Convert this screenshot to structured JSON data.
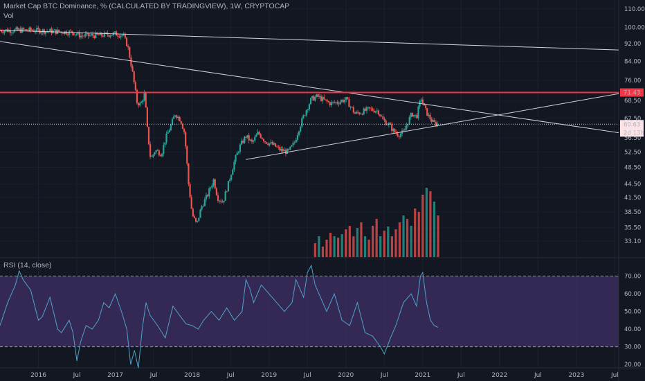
{
  "header": {
    "title": "Market Cap BTC Dominance, % (CALCULATED BY TRADINGVIEW), 1W, CRYPTOCAP",
    "volume_label": "Vol",
    "rsi_label": "RSI (14, close)"
  },
  "colors": {
    "background": "#131722",
    "up": "#26a69a",
    "down": "#ef5350",
    "resistance": "#f23645",
    "trendline": "#d1d4dc",
    "rsi_line": "#4fa3c9",
    "rsi_band": "#3b2d5e"
  },
  "chart_data": [
    {
      "type": "candlestick",
      "title": "Market Cap BTC Dominance, % (CALCULATED BY TRADINGVIEW), 1W, CRYPTOCAP",
      "y_scale": "log",
      "ylim": [
        31.5,
        112
      ],
      "y_ticks": [
        "110.00",
        "100.00",
        "92.00",
        "84.00",
        "76.00",
        "68.50",
        "62.50",
        "56.50",
        "52.50",
        "48.50",
        "44.50",
        "41.50",
        "38.50",
        "35.50",
        "33.10"
      ],
      "y_tick_values": [
        110,
        100,
        92,
        84,
        76,
        68.5,
        62.5,
        56.5,
        52.5,
        48.5,
        44.5,
        41.5,
        38.5,
        35.5,
        33.1
      ],
      "x_ticks": [
        "2016",
        "Jul",
        "2017",
        "Jul",
        "2018",
        "Jul",
        "2019",
        "Jul",
        "2020",
        "Jul",
        "2021",
        "Jul",
        "2022",
        "Jul",
        "2023",
        "Jul"
      ],
      "x_tick_dates": [
        2016.0,
        2016.5,
        2017.0,
        2017.5,
        2018.0,
        2018.5,
        2019.0,
        2019.5,
        2020.0,
        2020.5,
        2021.0,
        2021.5,
        2022.0,
        2022.5,
        2023.0,
        2023.5
      ],
      "xlim": [
        2015.5,
        2023.55
      ],
      "close_path": [
        [
          2015.5,
          98.5
        ],
        [
          2015.9,
          98.6
        ],
        [
          2016.2,
          98.0
        ],
        [
          2016.45,
          97.5
        ],
        [
          2016.55,
          95.8
        ],
        [
          2016.8,
          96.0
        ],
        [
          2017.0,
          96.8
        ],
        [
          2017.1,
          96.0
        ],
        [
          2017.16,
          91.0
        ],
        [
          2017.22,
          80.0
        ],
        [
          2017.28,
          68.0
        ],
        [
          2017.33,
          67.0
        ],
        [
          2017.38,
          71.0
        ],
        [
          2017.42,
          58.0
        ],
        [
          2017.46,
          50.5
        ],
        [
          2017.52,
          53.0
        ],
        [
          2017.6,
          52.0
        ],
        [
          2017.65,
          56.0
        ],
        [
          2017.72,
          60.0
        ],
        [
          2017.78,
          64.0
        ],
        [
          2017.85,
          62.0
        ],
        [
          2017.9,
          58.0
        ],
        [
          2017.95,
          45.0
        ],
        [
          2018.0,
          38.0
        ],
        [
          2018.06,
          36.0
        ],
        [
          2018.12,
          39.5
        ],
        [
          2018.2,
          42.0
        ],
        [
          2018.28,
          45.5
        ],
        [
          2018.33,
          41.5
        ],
        [
          2018.4,
          40.5
        ],
        [
          2018.47,
          44.5
        ],
        [
          2018.55,
          50.0
        ],
        [
          2018.62,
          54.0
        ],
        [
          2018.7,
          57.0
        ],
        [
          2018.78,
          55.0
        ],
        [
          2018.86,
          58.0
        ],
        [
          2018.95,
          55.5
        ],
        [
          2019.05,
          54.5
        ],
        [
          2019.15,
          53.0
        ],
        [
          2019.25,
          52.5
        ],
        [
          2019.33,
          55.0
        ],
        [
          2019.4,
          60.0
        ],
        [
          2019.48,
          65.0
        ],
        [
          2019.55,
          69.0
        ],
        [
          2019.63,
          70.0
        ],
        [
          2019.72,
          68.5
        ],
        [
          2019.8,
          67.5
        ],
        [
          2019.9,
          68.0
        ],
        [
          2020.0,
          69.0
        ],
        [
          2020.06,
          66.5
        ],
        [
          2020.12,
          64.0
        ],
        [
          2020.2,
          64.5
        ],
        [
          2020.3,
          65.5
        ],
        [
          2020.42,
          65.0
        ],
        [
          2020.48,
          62.0
        ],
        [
          2020.56,
          60.5
        ],
        [
          2020.62,
          58.5
        ],
        [
          2020.68,
          57.5
        ],
        [
          2020.75,
          58.0
        ],
        [
          2020.8,
          61.0
        ],
        [
          2020.86,
          64.0
        ],
        [
          2020.92,
          63.0
        ],
        [
          2020.98,
          69.5
        ],
        [
          2021.02,
          66.0
        ],
        [
          2021.08,
          63.0
        ],
        [
          2021.14,
          61.0
        ],
        [
          2021.2,
          60.63
        ]
      ],
      "last_value": "60.63",
      "countdown": "2d 13h",
      "volume": {
        "dates": [
          2019.6,
          2019.65,
          2019.7,
          2019.75,
          2019.8,
          2019.85,
          2019.9,
          2019.95,
          2020.0,
          2020.05,
          2020.1,
          2020.15,
          2020.2,
          2020.25,
          2020.3,
          2020.35,
          2020.4,
          2020.45,
          2020.5,
          2020.55,
          2020.6,
          2020.65,
          2020.7,
          2020.75,
          2020.8,
          2020.85,
          2020.9,
          2020.95,
          2021.0,
          2021.05,
          2021.1,
          2021.15,
          2021.2
        ],
        "values": [
          0.2,
          0.3,
          0.15,
          0.25,
          0.35,
          0.3,
          0.28,
          0.33,
          0.4,
          0.45,
          0.3,
          0.42,
          0.5,
          0.3,
          0.25,
          0.45,
          0.55,
          0.3,
          0.38,
          0.44,
          0.3,
          0.4,
          0.5,
          0.6,
          0.55,
          0.45,
          0.7,
          0.65,
          0.9,
          1.0,
          0.95,
          0.8,
          0.6
        ]
      },
      "annotations": {
        "resistance_level": "71.43",
        "price_levels": [
          71.43,
          60.63
        ]
      }
    },
    {
      "type": "line",
      "title": "RSI (14, close)",
      "ylim": [
        18.5,
        80
      ],
      "y_ticks": [
        "70.00",
        "60.00",
        "50.00",
        "40.00",
        "30.00",
        "20.00"
      ],
      "y_tick_values": [
        70,
        60,
        50,
        40,
        30,
        20
      ],
      "bands": [
        30,
        70
      ],
      "series": [
        {
          "x": [
            2015.5,
            2015.6,
            2015.7,
            2015.75,
            2015.8,
            2015.9,
            2016.0,
            2016.05,
            2016.15,
            2016.25,
            2016.3,
            2016.4,
            2016.45,
            2016.5,
            2016.55,
            2016.62,
            2016.7,
            2016.78,
            2016.85,
            2016.92,
            2017.0,
            2017.08,
            2017.15,
            2017.2,
            2017.25,
            2017.3,
            2017.35,
            2017.4,
            2017.45,
            2017.55,
            2017.65,
            2017.75,
            2017.85,
            2017.92,
            2018.0,
            2018.08,
            2018.15,
            2018.25,
            2018.35,
            2018.45,
            2018.55,
            2018.65,
            2018.7,
            2018.75,
            2018.8,
            2018.9,
            2019.0,
            2019.1,
            2019.2,
            2019.3,
            2019.35,
            2019.45,
            2019.5,
            2019.55,
            2019.6,
            2019.65,
            2019.75,
            2019.85,
            2019.95,
            2020.05,
            2020.15,
            2020.25,
            2020.35,
            2020.45,
            2020.5,
            2020.58,
            2020.65,
            2020.75,
            2020.85,
            2020.92,
            2020.97,
            2021.0,
            2021.05,
            2021.1,
            2021.15,
            2021.2
          ],
          "y": [
            42,
            55,
            65,
            73,
            68,
            62,
            45,
            47,
            58,
            40,
            38,
            45,
            38,
            22,
            33,
            42,
            40,
            45,
            55,
            52,
            60,
            50,
            40,
            20,
            28,
            18,
            40,
            55,
            48,
            42,
            35,
            53,
            47,
            43,
            42,
            40,
            45,
            50,
            45,
            52,
            45,
            50,
            68,
            63,
            55,
            65,
            60,
            55,
            50,
            55,
            68,
            58,
            72,
            76,
            65,
            60,
            50,
            60,
            45,
            42,
            55,
            38,
            36,
            30,
            26,
            35,
            42,
            55,
            60,
            53,
            70,
            72,
            55,
            45,
            42,
            41
          ]
        }
      ]
    }
  ]
}
